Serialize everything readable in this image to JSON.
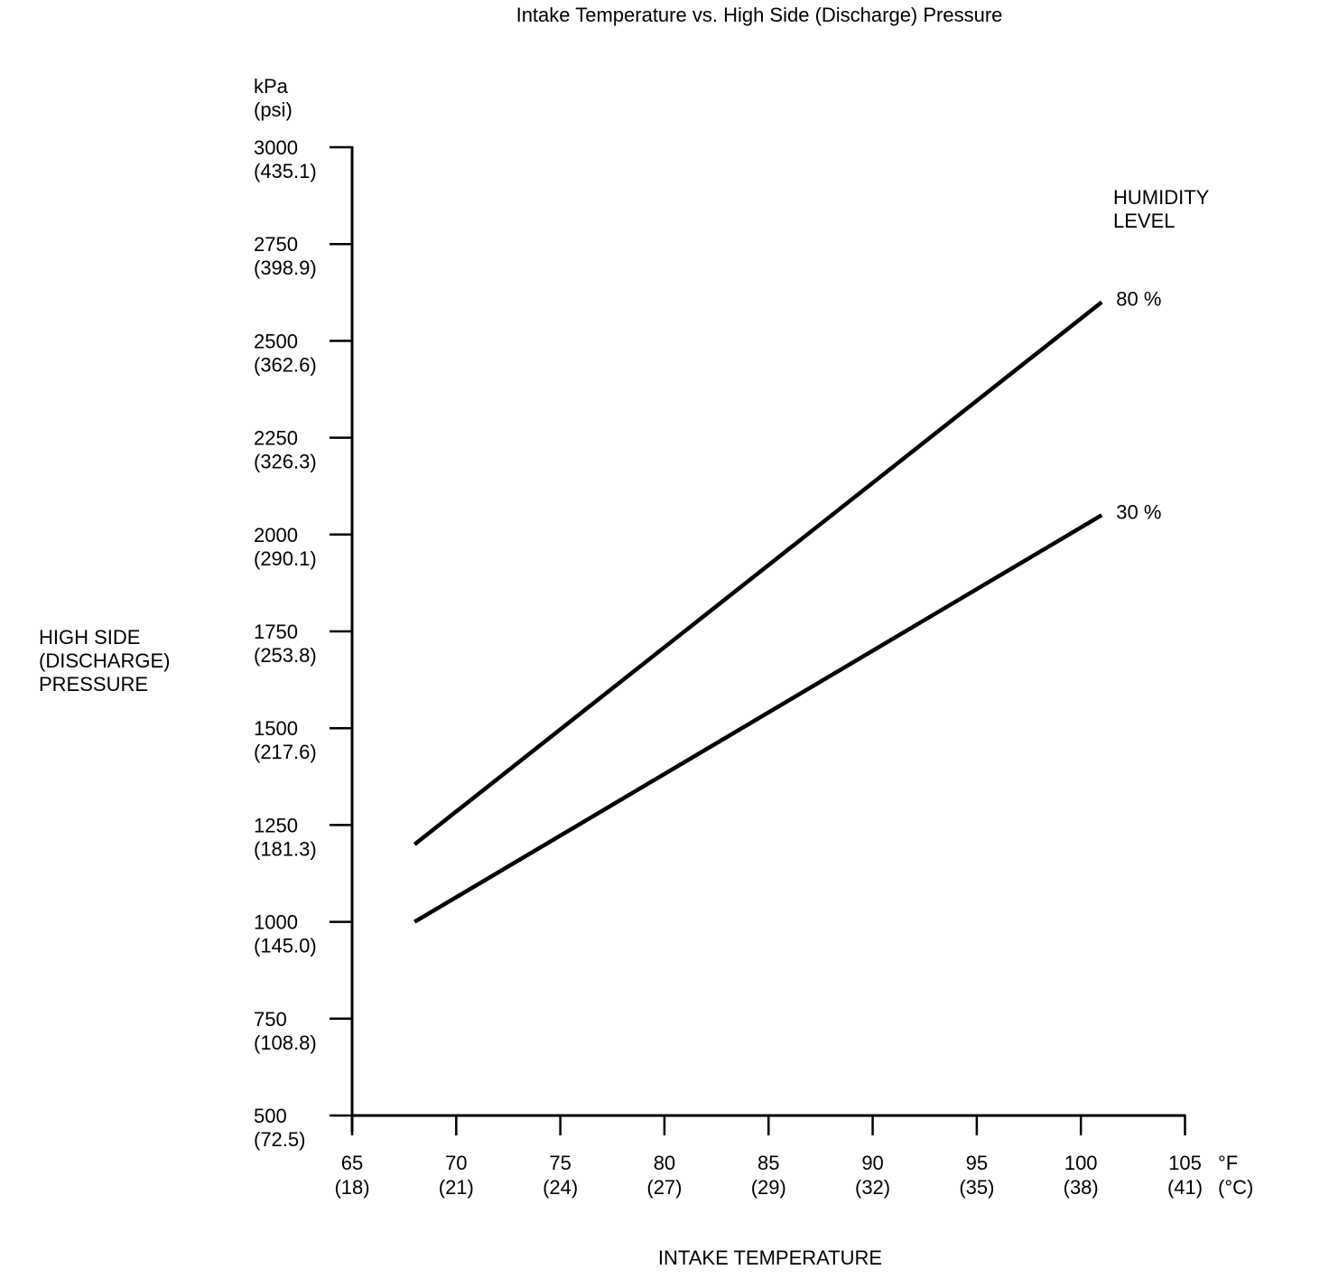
{
  "chart_data": {
    "type": "line",
    "title": "Intake Temperature vs. High Side (Discharge) Pressure",
    "xlabel": "INTAKE TEMPERATURE",
    "ylabel": "HIGH SIDE (DISCHARGE) PRESSURE",
    "ylabel_lines": [
      "HIGH SIDE",
      "(DISCHARGE)",
      "PRESSURE"
    ],
    "y_unit": "kPa (psi)",
    "y_unit_lines": [
      "kPa",
      "(psi)"
    ],
    "x_unit": "°F (°C)",
    "x_unit_lines": [
      "°F",
      "(°C)"
    ],
    "legend_title": "HUMIDITY LEVEL",
    "legend_title_lines": [
      "HUMIDITY",
      "LEVEL"
    ],
    "grid": false,
    "xlim": [
      65,
      105
    ],
    "ylim": [
      500,
      3000
    ],
    "x_ticks": [
      {
        "value": 65,
        "label": "65",
        "sub": "(18)"
      },
      {
        "value": 70,
        "label": "70",
        "sub": "(21)"
      },
      {
        "value": 75,
        "label": "75",
        "sub": "(24)"
      },
      {
        "value": 80,
        "label": "80",
        "sub": "(27)"
      },
      {
        "value": 85,
        "label": "85",
        "sub": "(29)"
      },
      {
        "value": 90,
        "label": "90",
        "sub": "(32)"
      },
      {
        "value": 95,
        "label": "95",
        "sub": "(35)"
      },
      {
        "value": 100,
        "label": "100",
        "sub": "(38)"
      },
      {
        "value": 105,
        "label": "105",
        "sub": "(41)"
      }
    ],
    "y_ticks": [
      {
        "value": 3000,
        "label": "3000",
        "sub": "(435.1)"
      },
      {
        "value": 2750,
        "label": "2750",
        "sub": "(398.9)"
      },
      {
        "value": 2500,
        "label": "2500",
        "sub": "(362.6)"
      },
      {
        "value": 2250,
        "label": "2250",
        "sub": "(326.3)"
      },
      {
        "value": 2000,
        "label": "2000",
        "sub": "(290.1)"
      },
      {
        "value": 1750,
        "label": "1750",
        "sub": "(253.8)"
      },
      {
        "value": 1500,
        "label": "1500",
        "sub": "(217.6)"
      },
      {
        "value": 1250,
        "label": "1250",
        "sub": "(181.3)"
      },
      {
        "value": 1000,
        "label": "1000",
        "sub": "(145.0)"
      },
      {
        "value": 750,
        "label": "750",
        "sub": "(108.8)"
      },
      {
        "value": 500,
        "label": "500",
        "sub": "(72.5)"
      }
    ],
    "series": [
      {
        "name": "80 %",
        "humidity_percent": 80,
        "points": [
          [
            68,
            1200
          ],
          [
            101,
            2600
          ]
        ]
      },
      {
        "name": "30 %",
        "humidity_percent": 30,
        "points": [
          [
            68,
            1000
          ],
          [
            101,
            2050
          ]
        ]
      }
    ],
    "colors": {
      "foreground": "#000000",
      "background": "#ffffff"
    }
  }
}
